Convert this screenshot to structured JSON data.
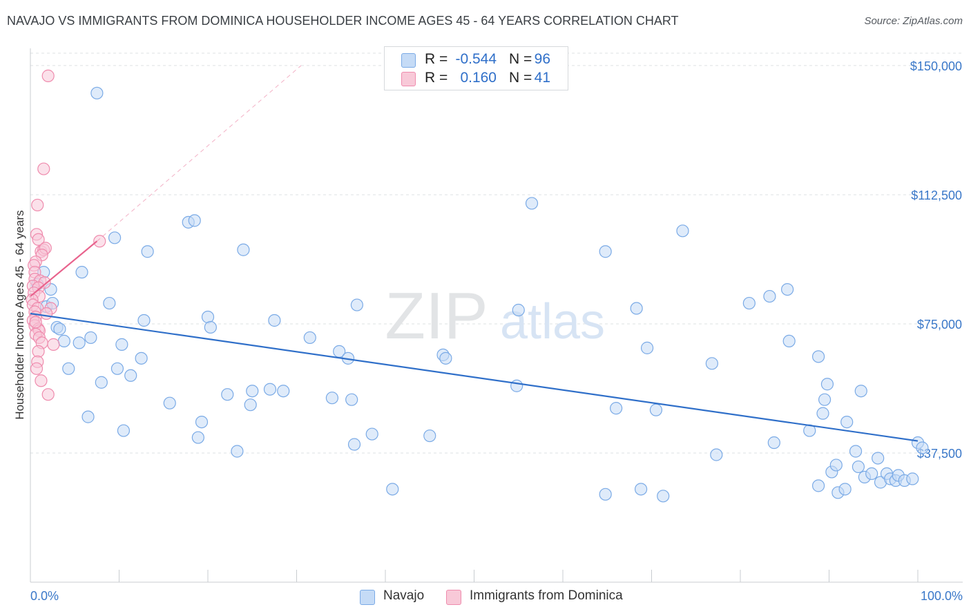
{
  "chart_data": {
    "type": "scatter",
    "title": "NAVAJO VS IMMIGRANTS FROM DOMINICA HOUSEHOLDER INCOME AGES 45 - 64 YEARS CORRELATION CHART",
    "source": "Source: ZipAtlas.com",
    "watermark": {
      "zip": "ZIP",
      "atlas": "atlas"
    },
    "ylabel": "Householder Income Ages 45 - 64 years",
    "xlim": [
      0,
      100
    ],
    "ylim": [
      0,
      155000
    ],
    "x_tick_labels": {
      "left": "0.0%",
      "right": "100.0%"
    },
    "x_ticks": [
      0,
      10,
      20,
      30,
      40,
      50,
      60,
      70,
      80,
      90,
      100
    ],
    "y_ticks": [
      {
        "value": 37500,
        "label": "$37,500"
      },
      {
        "value": 75000,
        "label": "$75,000"
      },
      {
        "value": 112500,
        "label": "$112,500"
      },
      {
        "value": 150000,
        "label": "$150,000"
      }
    ],
    "legend": {
      "rows": [
        {
          "r_label": "R =",
          "r_value": "-0.544",
          "n_label": "N =",
          "n_value": "96"
        },
        {
          "r_label": "R =",
          "r_value": "0.160",
          "n_label": "N =",
          "n_value": "41"
        }
      ]
    },
    "series": [
      {
        "name": "Navajo",
        "color": "#7aaae6",
        "fill": "#c5dbf6",
        "trend": {
          "x0": 0,
          "y0": 78000,
          "x1": 100,
          "y1": 41000,
          "color": "#2f6fc9"
        },
        "points": [
          [
            7.5,
            142000
          ],
          [
            1.5,
            90000
          ],
          [
            2.3,
            85000
          ],
          [
            1.8,
            80000
          ],
          [
            2.5,
            81000
          ],
          [
            3.0,
            74000
          ],
          [
            3.3,
            73500
          ],
          [
            3.8,
            70000
          ],
          [
            4.3,
            62000
          ],
          [
            5.5,
            69500
          ],
          [
            5.8,
            90000
          ],
          [
            6.5,
            48000
          ],
          [
            6.8,
            71000
          ],
          [
            8.0,
            58000
          ],
          [
            8.9,
            81000
          ],
          [
            9.5,
            100000
          ],
          [
            9.8,
            62000
          ],
          [
            10.3,
            69000
          ],
          [
            10.5,
            44000
          ],
          [
            11.3,
            60000
          ],
          [
            12.5,
            65000
          ],
          [
            12.8,
            76000
          ],
          [
            13.2,
            96000
          ],
          [
            15.7,
            52000
          ],
          [
            17.8,
            104500
          ],
          [
            18.5,
            105000
          ],
          [
            18.9,
            42000
          ],
          [
            19.3,
            46500
          ],
          [
            20.0,
            77000
          ],
          [
            20.3,
            74000
          ],
          [
            22.2,
            54500
          ],
          [
            23.3,
            38000
          ],
          [
            24.0,
            96500
          ],
          [
            24.8,
            51500
          ],
          [
            25.0,
            55500
          ],
          [
            27.0,
            56000
          ],
          [
            27.5,
            76000
          ],
          [
            28.5,
            55500
          ],
          [
            31.5,
            71000
          ],
          [
            34.0,
            53500
          ],
          [
            34.8,
            67000
          ],
          [
            35.8,
            65000
          ],
          [
            36.2,
            53000
          ],
          [
            36.5,
            40000
          ],
          [
            36.8,
            80500
          ],
          [
            38.5,
            43000
          ],
          [
            40.8,
            27000
          ],
          [
            45.0,
            42500
          ],
          [
            46.5,
            66000
          ],
          [
            46.8,
            65000
          ],
          [
            54.8,
            57000
          ],
          [
            55.0,
            79000
          ],
          [
            56.5,
            110000
          ],
          [
            64.8,
            25500
          ],
          [
            64.8,
            96000
          ],
          [
            66.0,
            50500
          ],
          [
            68.3,
            79500
          ],
          [
            68.8,
            27000
          ],
          [
            69.5,
            68000
          ],
          [
            70.5,
            50000
          ],
          [
            71.3,
            25000
          ],
          [
            73.5,
            102000
          ],
          [
            76.8,
            63500
          ],
          [
            77.3,
            37000
          ],
          [
            81.0,
            81000
          ],
          [
            83.3,
            83000
          ],
          [
            83.8,
            40500
          ],
          [
            85.3,
            85000
          ],
          [
            85.5,
            70000
          ],
          [
            87.8,
            44000
          ],
          [
            88.8,
            65500
          ],
          [
            88.8,
            28000
          ],
          [
            89.3,
            49000
          ],
          [
            89.5,
            53000
          ],
          [
            89.8,
            57500
          ],
          [
            90.3,
            32000
          ],
          [
            90.8,
            34000
          ],
          [
            91.0,
            26000
          ],
          [
            91.8,
            27000
          ],
          [
            92.0,
            46500
          ],
          [
            93.0,
            38000
          ],
          [
            93.3,
            33500
          ],
          [
            93.6,
            55500
          ],
          [
            94.0,
            30500
          ],
          [
            94.8,
            31500
          ],
          [
            95.5,
            36000
          ],
          [
            95.8,
            29000
          ],
          [
            96.5,
            31500
          ],
          [
            96.9,
            30000
          ],
          [
            97.5,
            29500
          ],
          [
            97.8,
            31000
          ],
          [
            98.5,
            29500
          ],
          [
            99.4,
            30000
          ],
          [
            100.0,
            40500
          ],
          [
            100.5,
            39000
          ],
          [
            0.8,
            86500
          ]
        ]
      },
      {
        "name": "Immigrants from Dominica",
        "color": "#ef8bad",
        "fill": "#f8c9d8",
        "trend": {
          "x0": 0,
          "y0": 83000,
          "x1": 7.5,
          "y1": 99000,
          "color": "#e8638d",
          "ext_x1": 30.5,
          "ext_y1": 150000
        },
        "points": [
          [
            2.0,
            147000
          ],
          [
            1.5,
            120000
          ],
          [
            0.8,
            109500
          ],
          [
            0.7,
            101000
          ],
          [
            0.9,
            99500
          ],
          [
            7.8,
            99000
          ],
          [
            1.2,
            96000
          ],
          [
            1.5,
            96500
          ],
          [
            1.7,
            97000
          ],
          [
            1.3,
            95000
          ],
          [
            0.6,
            93000
          ],
          [
            0.4,
            92000
          ],
          [
            0.5,
            90000
          ],
          [
            0.5,
            88000
          ],
          [
            1.1,
            87500
          ],
          [
            1.6,
            87000
          ],
          [
            0.3,
            86000
          ],
          [
            0.9,
            85500
          ],
          [
            0.4,
            84000
          ],
          [
            1.0,
            83000
          ],
          [
            0.2,
            82000
          ],
          [
            0.3,
            80500
          ],
          [
            0.8,
            79500
          ],
          [
            2.3,
            79500
          ],
          [
            0.5,
            78500
          ],
          [
            1.8,
            78000
          ],
          [
            0.6,
            77000
          ],
          [
            0.3,
            76000
          ],
          [
            0.5,
            74500
          ],
          [
            0.9,
            73500
          ],
          [
            1.0,
            73000
          ],
          [
            0.6,
            72000
          ],
          [
            1.0,
            71000
          ],
          [
            1.3,
            69500
          ],
          [
            2.6,
            69000
          ],
          [
            0.9,
            67000
          ],
          [
            0.8,
            64000
          ],
          [
            0.7,
            62000
          ],
          [
            1.2,
            58500
          ],
          [
            2.0,
            54500
          ],
          [
            0.6,
            75500
          ]
        ]
      }
    ]
  }
}
